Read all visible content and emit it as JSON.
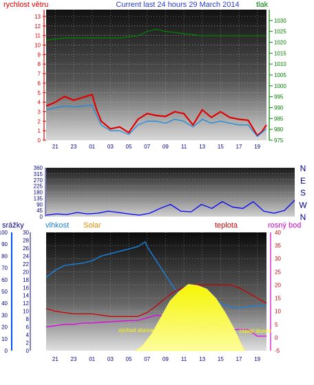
{
  "header": {
    "left_label": "rychlost větru",
    "title": "Current last 24 hours 29 March 2014",
    "right_label": "tlak"
  },
  "colors": {
    "wind": "#e00000",
    "gust": "#1a8adf",
    "pressure": "#008000",
    "direction": "#0000ff",
    "humidity": "#1a7fd8",
    "solar": "#ffff00",
    "temperature": "#cc0000",
    "dewpoint": "#e000e0",
    "precip": "#0050ff",
    "axis_blue": "#00008b"
  },
  "chart_data": [
    {
      "id": "wind_pressure",
      "type": "line",
      "x_ticks": [
        "21",
        "23",
        "01",
        "03",
        "05",
        "07",
        "09",
        "11",
        "13",
        "15",
        "17",
        "19"
      ],
      "ylabel_left": "rychlost větru",
      "ylabel_right": "tlak",
      "ylim_left": [
        0,
        13
      ],
      "ylim_right": [
        975,
        1035
      ],
      "left_ticks": [
        0,
        1,
        2,
        3,
        4,
        5,
        6,
        7,
        8,
        9,
        10,
        11,
        12,
        13
      ],
      "right_ticks": [
        975,
        980,
        985,
        990,
        995,
        1000,
        1005,
        1010,
        1015,
        1020,
        1025,
        1030
      ],
      "series": [
        {
          "key": "wind",
          "x": [
            20.0,
            21,
            22,
            23,
            24,
            25,
            25.5,
            26,
            27,
            28,
            29,
            30,
            31,
            32,
            33,
            34,
            35,
            36,
            37,
            38,
            39,
            40,
            41,
            42,
            43,
            43.5,
            44
          ],
          "values": [
            3.6,
            4.0,
            4.6,
            4.2,
            4.5,
            4.8,
            3.2,
            2.0,
            1.2,
            1.4,
            0.8,
            2.2,
            2.8,
            2.6,
            2.5,
            3.0,
            2.8,
            1.6,
            3.2,
            2.4,
            3.0,
            2.4,
            2.2,
            2.1,
            0.5,
            0.9,
            1.6
          ]
        },
        {
          "key": "gust",
          "x": [
            20.0,
            21,
            22,
            23,
            24,
            25,
            25.5,
            26,
            27,
            28,
            29,
            30,
            31,
            32,
            33,
            34,
            35,
            36,
            37,
            38,
            39,
            40,
            41,
            42,
            43,
            43.5,
            44
          ],
          "values": [
            3.2,
            3.4,
            3.6,
            3.5,
            3.6,
            3.7,
            2.6,
            1.6,
            1.0,
            1.0,
            0.6,
            1.6,
            2.0,
            2.0,
            1.8,
            2.2,
            2.0,
            1.4,
            2.2,
            1.8,
            2.0,
            1.8,
            1.6,
            1.6,
            0.4,
            0.8,
            1.2
          ]
        },
        {
          "key": "pressure",
          "x": [
            20.0,
            22,
            24,
            26,
            28,
            30,
            31,
            32,
            33,
            35,
            37,
            39,
            41,
            43,
            44
          ],
          "values": [
            1021.0,
            1022.0,
            1022.0,
            1022.0,
            1022.0,
            1023.0,
            1025.0,
            1026.0,
            1025.0,
            1024.0,
            1023.0,
            1023.0,
            1023.0,
            1023.0,
            1023.0
          ]
        }
      ]
    },
    {
      "id": "wind_direction",
      "type": "line",
      "ylabel": "",
      "ylim": [
        0,
        360
      ],
      "left_ticks": [
        0,
        45,
        90,
        135,
        180,
        225,
        270,
        315,
        360
      ],
      "compass": [
        "N",
        "W",
        "S",
        "E",
        "N"
      ],
      "series": [
        {
          "key": "direction",
          "x": [
            20.0,
            21,
            22,
            23,
            24,
            25,
            26,
            27,
            28,
            29,
            30,
            31,
            32,
            33,
            34,
            35,
            36,
            37,
            38,
            39,
            40,
            41,
            42,
            43,
            44
          ],
          "values": [
            10,
            20,
            15,
            30,
            20,
            25,
            40,
            30,
            20,
            10,
            25,
            60,
            90,
            40,
            35,
            90,
            60,
            110,
            70,
            60,
            110,
            40,
            25,
            45,
            120
          ]
        }
      ]
    },
    {
      "id": "temp_humidity_solar",
      "type": "area",
      "x_ticks": [
        "21",
        "23",
        "01",
        "03",
        "05",
        "07",
        "09",
        "11",
        "13",
        "15",
        "17",
        "19"
      ],
      "axes": {
        "precip": {
          "label": "srážky",
          "ticks": [
            0,
            10,
            20,
            30,
            40,
            50,
            60,
            70,
            80,
            90,
            100
          ]
        },
        "humidity": {
          "label": "vlhkost",
          "ticks": [
            0,
            2,
            4,
            6,
            8,
            10,
            12,
            14,
            16,
            18,
            20,
            22,
            24,
            26,
            28,
            30
          ]
        },
        "solar": {
          "label": "Solar"
        },
        "temperature": {
          "label": "teplota",
          "ticks": [
            -5,
            0,
            5,
            10,
            15,
            20,
            25,
            30,
            35,
            40
          ]
        },
        "dewpoint": {
          "label": "rosný bod"
        }
      },
      "annotations": {
        "sunrise": "východ slunce",
        "sunset": "západ slunce"
      },
      "series": [
        {
          "key": "humidity",
          "x": [
            20.0,
            21,
            22,
            23,
            24,
            25,
            26,
            27,
            28,
            29,
            30,
            30.8,
            31,
            32,
            33,
            34,
            35,
            36,
            37,
            38,
            39,
            40,
            41,
            42,
            43,
            44
          ],
          "values": [
            62,
            68,
            72,
            73,
            74,
            76,
            80,
            82,
            84,
            86,
            88,
            92,
            88,
            76,
            64,
            52,
            44,
            42,
            42,
            41,
            40,
            37,
            36,
            37,
            38,
            38
          ]
        },
        {
          "key": "temperature",
          "x": [
            20.0,
            21,
            22,
            23,
            24,
            25,
            26,
            27,
            28,
            29,
            30,
            31,
            32,
            33,
            34,
            35,
            36,
            37,
            38,
            39,
            40,
            41,
            42,
            43,
            44
          ],
          "values": [
            11,
            10,
            9.5,
            9,
            9,
            9,
            8.5,
            8,
            8,
            8,
            8,
            9.5,
            12,
            15,
            17.5,
            19,
            20,
            20,
            20,
            20,
            20,
            19,
            17,
            15,
            13
          ]
        },
        {
          "key": "dewpoint",
          "x": [
            20.0,
            21,
            22,
            23,
            24,
            25,
            26,
            27,
            28,
            29,
            30,
            31,
            32,
            33,
            34,
            35,
            36,
            37,
            38,
            39,
            40,
            41,
            42,
            43,
            44
          ],
          "values": [
            4,
            4.5,
            5,
            5,
            5.5,
            5.5,
            5.8,
            6,
            6.2,
            6.4,
            6.5,
            7.5,
            8.5,
            8,
            6,
            5,
            5,
            4,
            5,
            4.5,
            3,
            3,
            3,
            0.5,
            0.5
          ]
        },
        {
          "key": "solar",
          "x": [
            29.8,
            30.5,
            31.5,
            32.5,
            33.5,
            34.5,
            35.5,
            36.5,
            37.5,
            38.5,
            39.5,
            40.5,
            41.2,
            41.6
          ],
          "values": [
            0,
            4,
            14,
            28,
            42,
            50,
            56,
            55,
            52,
            44,
            32,
            18,
            6,
            0
          ]
        }
      ]
    }
  ]
}
